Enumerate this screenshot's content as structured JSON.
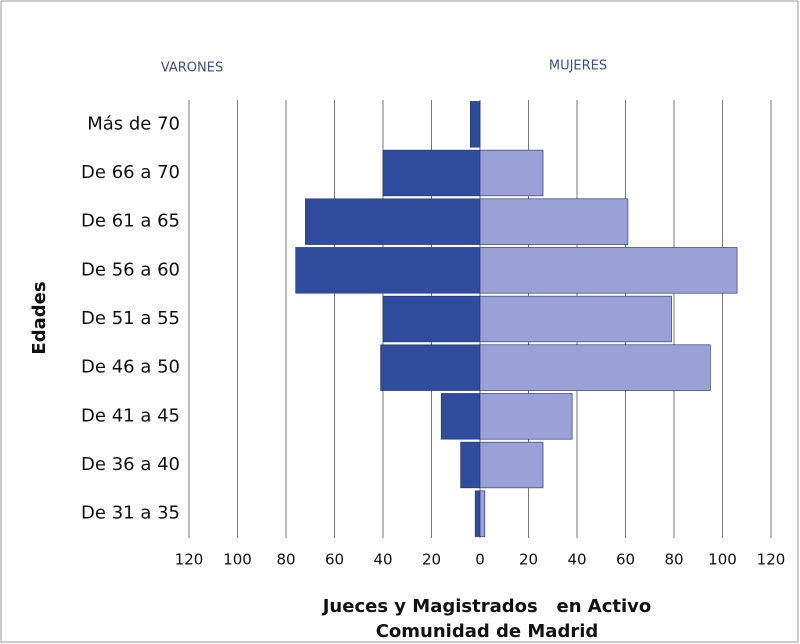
{
  "chart_data": {
    "type": "pyramid",
    "title": "Jueces y Magistrados   en Activo",
    "subtitle": "Comunidad de Madrid",
    "y_label": "Edades",
    "categories": [
      "Más de 70",
      "De 66 a 70",
      "De 61 a 65",
      "De 56 a 60",
      "De 51 a 55",
      "De 46 a 50",
      "De 41 a 45",
      "De 36 a 40",
      "De 31 a 35"
    ],
    "series": [
      {
        "name": "VARONES",
        "color": "#2f4c9e",
        "values": [
          -4,
          -40,
          -72,
          -76,
          -40,
          -41,
          -16,
          -8,
          -2
        ]
      },
      {
        "name": "MUJERES",
        "color": "#99a1d6",
        "values": [
          0,
          26,
          61,
          106,
          79,
          95,
          38,
          26,
          2
        ]
      }
    ],
    "xlim": [
      -120,
      120
    ],
    "xticks": [
      {
        "value": -120,
        "label": "120"
      },
      {
        "value": -100,
        "label": "100"
      },
      {
        "value": -80,
        "label": "80"
      },
      {
        "value": -60,
        "label": "60"
      },
      {
        "value": -40,
        "label": "40"
      },
      {
        "value": -20,
        "label": "20"
      },
      0,
      20,
      40,
      60,
      80,
      100,
      120
    ],
    "grid": true
  }
}
